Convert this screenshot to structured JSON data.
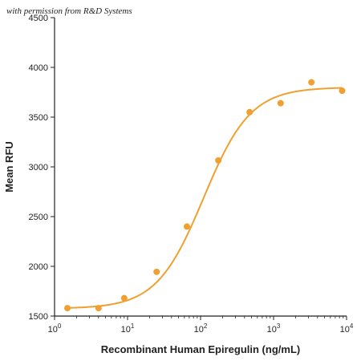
{
  "watermark": "with permission from R&D Systems",
  "chart_data": {
    "type": "scatter",
    "title": "",
    "xlabel": "Recombinant Human Epiregulin (ng/mL)",
    "ylabel": "Mean RFU",
    "x_scale": "log",
    "xlim": [
      1,
      10000
    ],
    "ylim": [
      1500,
      4500
    ],
    "x_ticks": [
      {
        "base": "10",
        "exp": "0",
        "value": 1
      },
      {
        "base": "10",
        "exp": "1",
        "value": 10
      },
      {
        "base": "10",
        "exp": "2",
        "value": 100
      },
      {
        "base": "10",
        "exp": "3",
        "value": 1000
      },
      {
        "base": "10",
        "exp": "4",
        "value": 10000
      }
    ],
    "y_ticks": [
      "1500",
      "2000",
      "2500",
      "3000",
      "3500",
      "4000",
      "4500"
    ],
    "color": "#f0a030",
    "grid": false,
    "legend": "none",
    "series": [
      {
        "points": [
          {
            "x": 1.5,
            "y": 1580
          },
          {
            "x": 4,
            "y": 1580
          },
          {
            "x": 9,
            "y": 1680
          },
          {
            "x": 25,
            "y": 1945
          },
          {
            "x": 65,
            "y": 2400
          },
          {
            "x": 175,
            "y": 3065
          },
          {
            "x": 470,
            "y": 3550
          },
          {
            "x": 1250,
            "y": 3640
          },
          {
            "x": 3300,
            "y": 3850
          },
          {
            "x": 8700,
            "y": 3765
          }
        ],
        "fit": {
          "bottom": 1575,
          "top": 3800,
          "ec50": 110,
          "hill": 1.35
        }
      }
    ]
  }
}
